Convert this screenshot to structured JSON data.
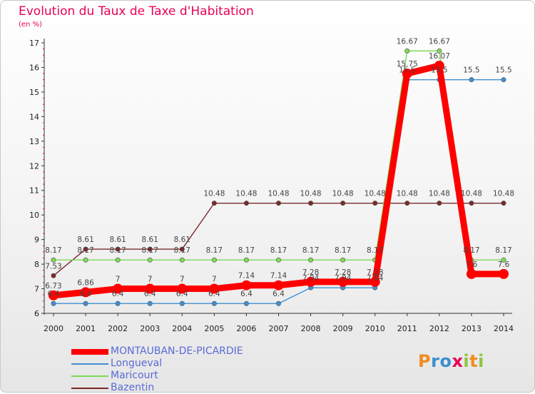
{
  "chart_data": {
    "type": "line",
    "title": "Evolution du Taux de Taxe d'Habitation",
    "subtitle": "(en %)",
    "x": [
      "2000",
      "2001",
      "2002",
      "2003",
      "2004",
      "2005",
      "2006",
      "2007",
      "2008",
      "2009",
      "2010",
      "2011",
      "2012",
      "2013",
      "2014"
    ],
    "y_ticks": [
      "6",
      "7",
      "8",
      "9",
      "10",
      "11",
      "12",
      "13",
      "14",
      "15",
      "16",
      "17"
    ],
    "ylim": [
      6,
      17
    ],
    "grid": false,
    "legend_position": "bottom-left",
    "series": [
      {
        "name": "MONTAUBAN-DE-PICARDIE",
        "color": "#ff0000",
        "values": [
          6.73,
          6.86,
          7,
          7,
          7,
          7,
          7.14,
          7.14,
          7.28,
          7.28,
          7.28,
          15.75,
          16.07,
          7.6,
          7.6
        ],
        "labels": [
          "6.73",
          "6.86",
          "7",
          "7",
          "7",
          "7",
          "7.14",
          "7.14",
          "7.28",
          "7.28",
          "7.28",
          "15.75",
          "16.07",
          "7.6",
          "7.6"
        ]
      },
      {
        "name": "Longueval",
        "color": "#3f8fd2",
        "values": [
          6.4,
          6.4,
          6.4,
          6.4,
          6.4,
          6.4,
          6.4,
          6.4,
          7.04,
          7.04,
          7.04,
          15.5,
          15.5,
          15.5,
          15.5
        ],
        "labels": [
          "6.4",
          "6.4",
          "6.4",
          "6.4",
          "6.4",
          "6.4",
          "6.4",
          "6.4",
          "7.04",
          "7.04",
          "7.04",
          "15.5",
          "15.5",
          "15.5",
          "15.5"
        ]
      },
      {
        "name": "Maricourt",
        "color": "#7ed957",
        "values": [
          8.17,
          8.17,
          8.17,
          8.17,
          8.17,
          8.17,
          8.17,
          8.17,
          8.17,
          8.17,
          8.17,
          16.67,
          16.67,
          8.17,
          8.17
        ],
        "labels": [
          "8.17",
          "8.17",
          "8.17",
          "8.17",
          "8.17",
          "8.17",
          "8.17",
          "8.17",
          "8.17",
          "8.17",
          "8.17",
          "16.67",
          "16.67",
          "8.17",
          "8.17"
        ]
      },
      {
        "name": "Bazentin",
        "color": "#7a2a2a",
        "values": [
          7.53,
          8.61,
          8.61,
          8.61,
          8.61,
          10.48,
          10.48,
          10.48,
          10.48,
          10.48,
          10.48,
          10.48,
          10.48,
          10.48,
          10.48
        ],
        "labels": [
          "7.53",
          "8.61",
          "8.61",
          "8.61",
          "8.61",
          "10.48",
          "10.48",
          "10.48",
          "10.48",
          "10.48",
          "10.48",
          "10.48",
          "10.48",
          "10.48",
          "10.48"
        ]
      }
    ]
  },
  "logo": {
    "p": "P",
    "r": "r",
    "o": "o",
    "x": "x",
    "i": "i",
    "t": "t",
    "i2": "i"
  }
}
